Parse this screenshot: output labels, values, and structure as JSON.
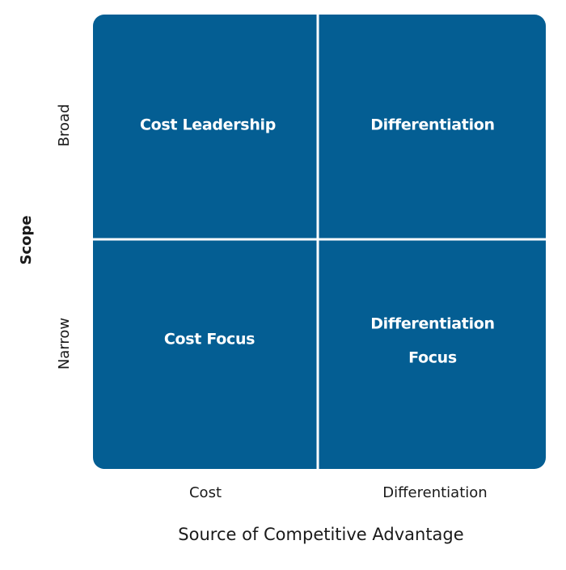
{
  "y_axis": {
    "title": "Scope",
    "labels": [
      "Broad",
      "Narrow"
    ]
  },
  "x_axis": {
    "title": "Source of Competitive Advantage",
    "labels": [
      "Cost",
      "Differentiation"
    ]
  },
  "quadrants": [
    {
      "lines": [
        "Cost Leadership"
      ]
    },
    {
      "lines": [
        "Differentiation"
      ]
    },
    {
      "lines": [
        "Cost Focus"
      ]
    },
    {
      "lines": [
        "Differentiation",
        "Focus"
      ]
    }
  ]
}
